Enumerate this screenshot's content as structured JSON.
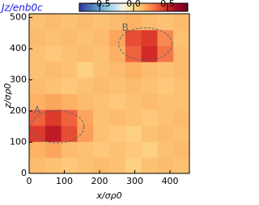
{
  "chart_data": {
    "type": "heatmap",
    "title": "Jz/enb0c",
    "xlabel": "x/σρ0",
    "ylabel": "z/σρ0",
    "xlim": [
      0,
      455
    ],
    "ylim": [
      0,
      512
    ],
    "xticks": [
      0,
      100,
      200,
      300,
      400
    ],
    "yticks": [
      0,
      100,
      200,
      300,
      400,
      500
    ],
    "clim": [
      -0.8,
      0.8
    ],
    "cticks": [
      {
        "value": -0.5,
        "label": "−0.5"
      },
      {
        "value": 0,
        "label": "0.0"
      },
      {
        "value": 0.5,
        "label": "0.5"
      }
    ],
    "colormap": [
      "#313695",
      "#4575b4",
      "#74add1",
      "#abd9e9",
      "#f7f4e6",
      "#fee090",
      "#fdae61",
      "#f46d43",
      "#d73027",
      "#a50026",
      "#67001f"
    ],
    "z": [
      [
        0.12,
        0.1,
        0.08,
        0.1,
        0.12,
        0.1,
        0.05,
        0.1,
        0.12,
        0.1
      ],
      [
        0.15,
        0.18,
        0.12,
        0.1,
        0.08,
        0.1,
        0.08,
        0.05,
        0.1,
        0.12
      ],
      [
        0.45,
        0.55,
        0.4,
        0.2,
        0.1,
        0.08,
        0.05,
        0.1,
        0.12,
        0.1
      ],
      [
        0.35,
        0.45,
        0.35,
        0.18,
        0.1,
        0.12,
        0.1,
        0.08,
        0.1,
        0.12
      ],
      [
        0.15,
        0.18,
        0.15,
        0.12,
        0.1,
        0.08,
        0.1,
        0.12,
        0.1,
        0.1
      ],
      [
        0.12,
        0.1,
        0.08,
        0.1,
        0.12,
        0.1,
        0.12,
        0.1,
        0.08,
        0.1
      ],
      [
        0.1,
        0.12,
        0.1,
        0.05,
        0.1,
        0.12,
        0.15,
        0.12,
        0.1,
        0.12
      ],
      [
        0.1,
        0.08,
        0.1,
        0.12,
        0.1,
        0.15,
        0.35,
        0.5,
        0.3,
        0.12
      ],
      [
        0.12,
        0.1,
        0.12,
        0.1,
        0.12,
        0.18,
        0.4,
        0.45,
        0.25,
        0.1
      ],
      [
        0.1,
        0.12,
        0.1,
        0.12,
        0.1,
        0.12,
        0.15,
        0.12,
        0.1,
        0.12
      ]
    ],
    "annotations": [
      {
        "text": "A",
        "x": 80,
        "y": 150
      },
      {
        "text": "B",
        "x": 330,
        "y": 415
      }
    ]
  }
}
